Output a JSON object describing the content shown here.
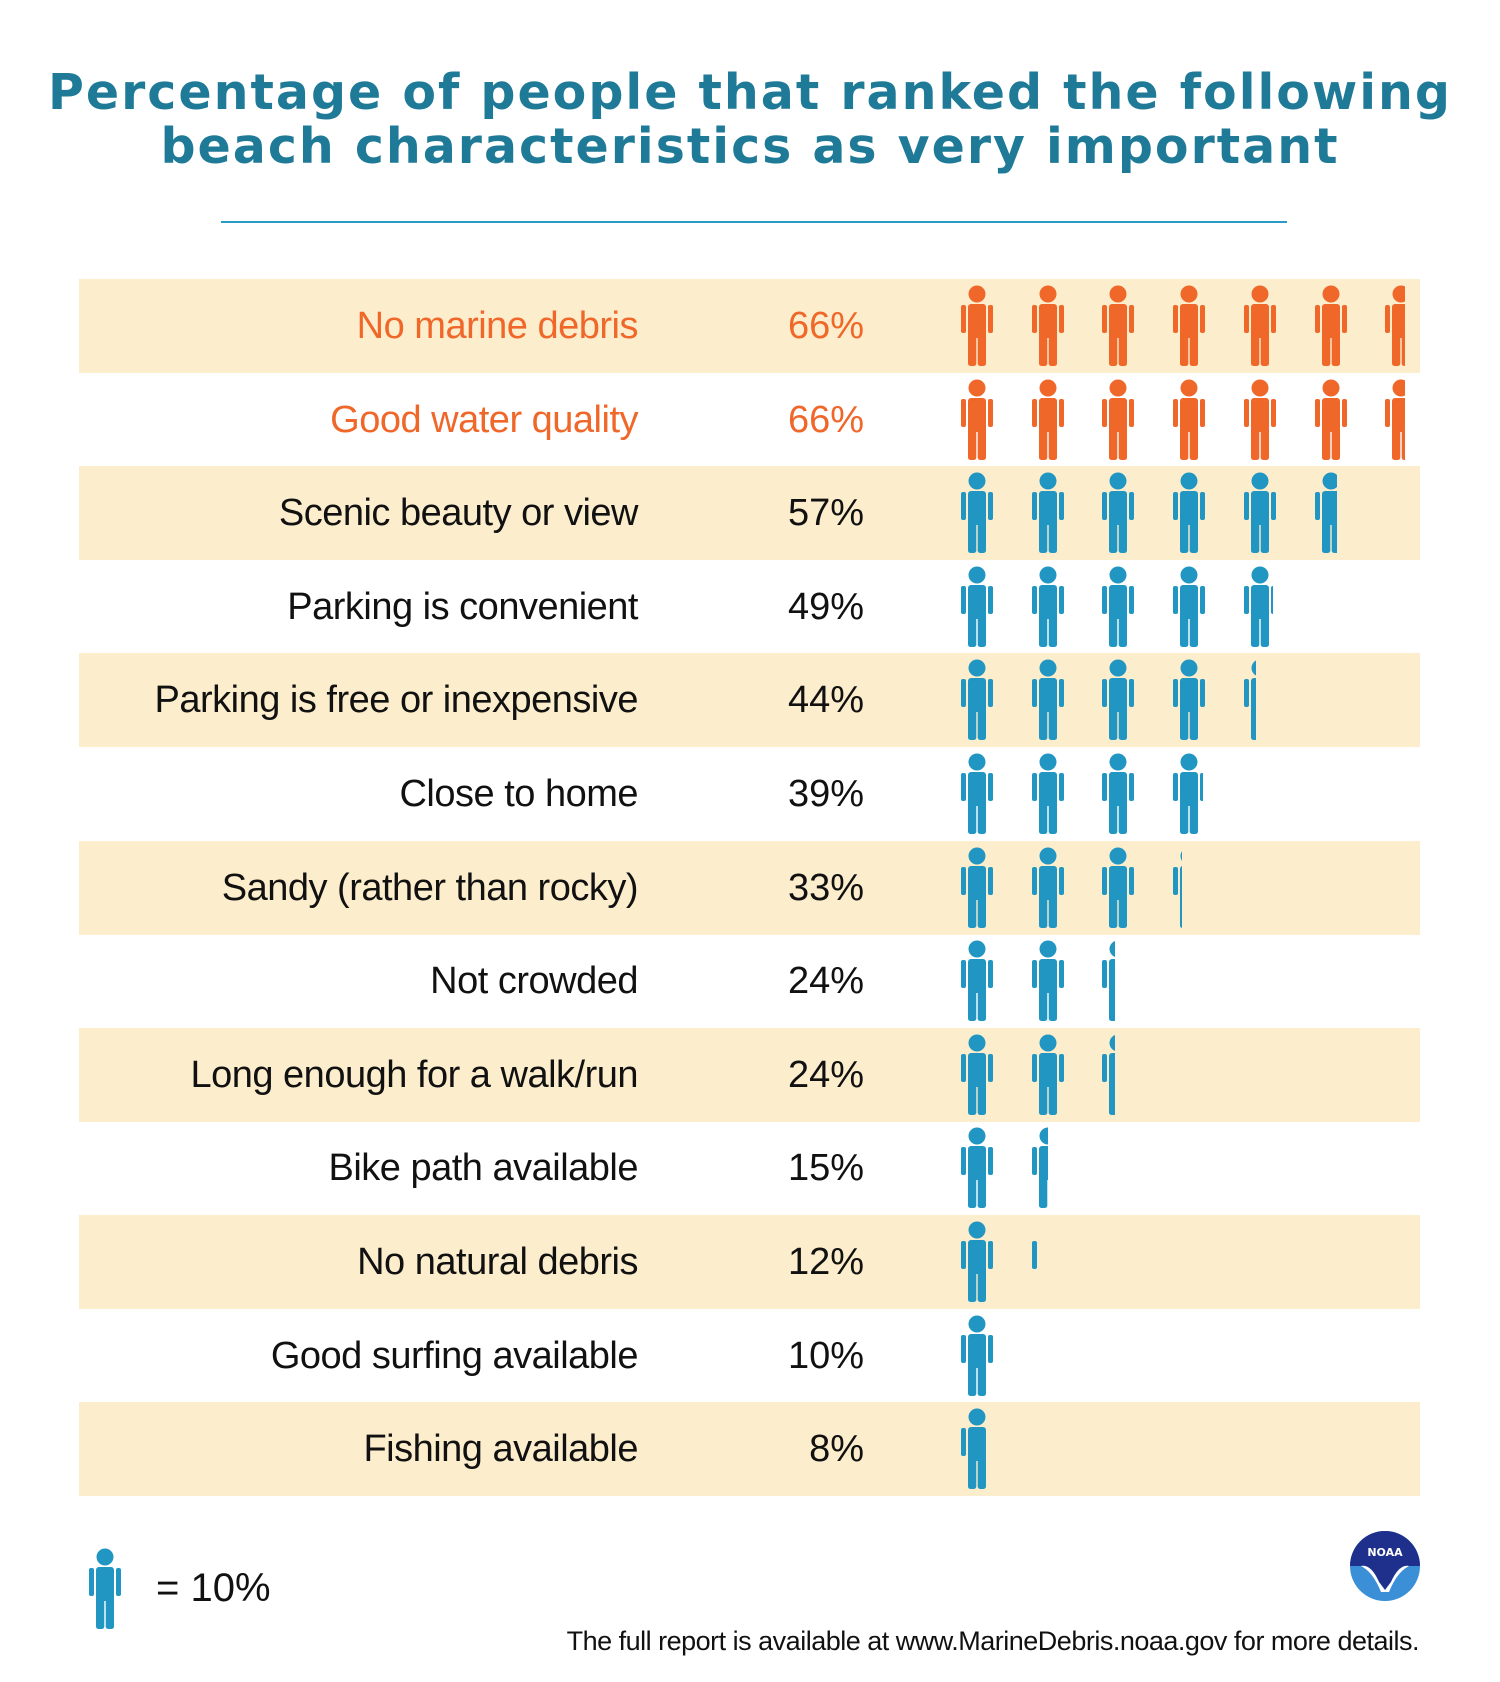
{
  "chart_data": {
    "type": "pictograph",
    "title": "Percentage of people that ranked the following beach characteristics as very important",
    "title_lines": [
      "Percentage of people that ranked the following",
      "beach characteristics as very important"
    ],
    "unit_per_icon": 10,
    "categories": [
      "No marine debris",
      "Good water quality",
      "Scenic beauty or view",
      "Parking is convenient",
      "Parking is free or inexpensive",
      "Close to home",
      "Sandy (rather than rocky)",
      "Not crowded",
      "Long enough for a walk/run",
      "Bike path available",
      "No natural debris",
      "Good surfing available",
      "Fishing available"
    ],
    "values": [
      66,
      66,
      57,
      49,
      44,
      39,
      33,
      24,
      24,
      15,
      12,
      10,
      8
    ],
    "value_labels": [
      "66%",
      "66%",
      "57%",
      "49%",
      "44%",
      "39%",
      "33%",
      "24%",
      "24%",
      "15%",
      "12%",
      "10%",
      "8%"
    ],
    "highlighted": [
      true,
      true,
      false,
      false,
      false,
      false,
      false,
      false,
      false,
      false,
      false,
      false,
      false
    ]
  },
  "colors": {
    "highlight": "#f0672a",
    "normal": "#2196c2",
    "band": "#fcedcc",
    "title": "#1f7a98"
  },
  "legend": {
    "text": "= 10%"
  },
  "footer": {
    "text": "The full report is available at www.MarineDebris.noaa.gov for more details."
  },
  "logo": {
    "text": "NOAA"
  }
}
